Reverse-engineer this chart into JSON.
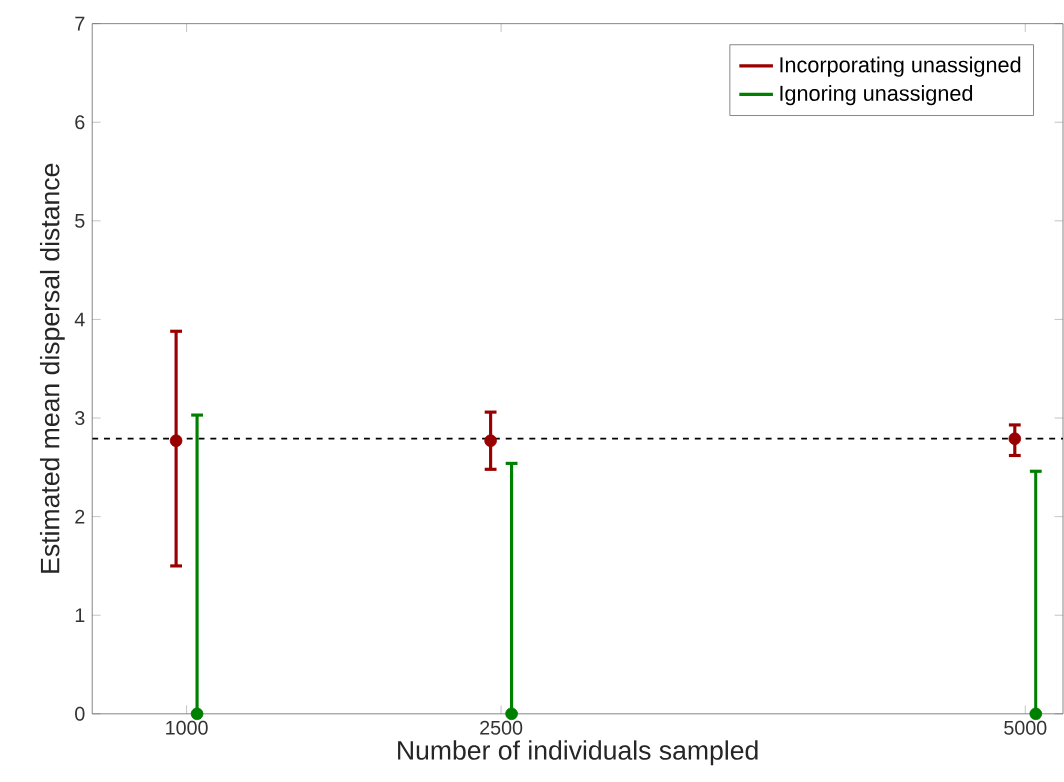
{
  "chart_data": {
    "type": "scatter",
    "xlabel": "Number of individuals sampled",
    "ylabel": "Estimated mean dispersal distance",
    "xlim": [
      550,
      5180
    ],
    "xticks": [
      1000,
      2500,
      5000
    ],
    "ylim": [
      0,
      7
    ],
    "yticks": [
      0,
      1,
      2,
      3,
      4,
      5,
      6,
      7
    ],
    "marker": "circle",
    "legend": "top right",
    "grid": false,
    "series": [
      {
        "name": "Incorporating unassigned",
        "color": "#990000",
        "x": [
          950,
          2450,
          4950
        ],
        "values": [
          2.77,
          2.77,
          2.79
        ],
        "errors": [
          [
            1.5,
            3.88
          ],
          [
            2.48,
            3.06
          ],
          [
            2.62,
            2.93
          ]
        ]
      },
      {
        "name": "Ignoring unassigned",
        "color": "#008000",
        "x": [
          1050,
          2550,
          5050
        ],
        "values": [
          0,
          0,
          0
        ],
        "errors": [
          [
            0,
            3.03
          ],
          [
            0,
            2.54
          ],
          [
            0,
            2.46
          ]
        ]
      }
    ],
    "ref_lines": [
      {
        "axis": "y",
        "value": 2.79,
        "line_style": "dashed",
        "color": "#000000"
      }
    ]
  }
}
